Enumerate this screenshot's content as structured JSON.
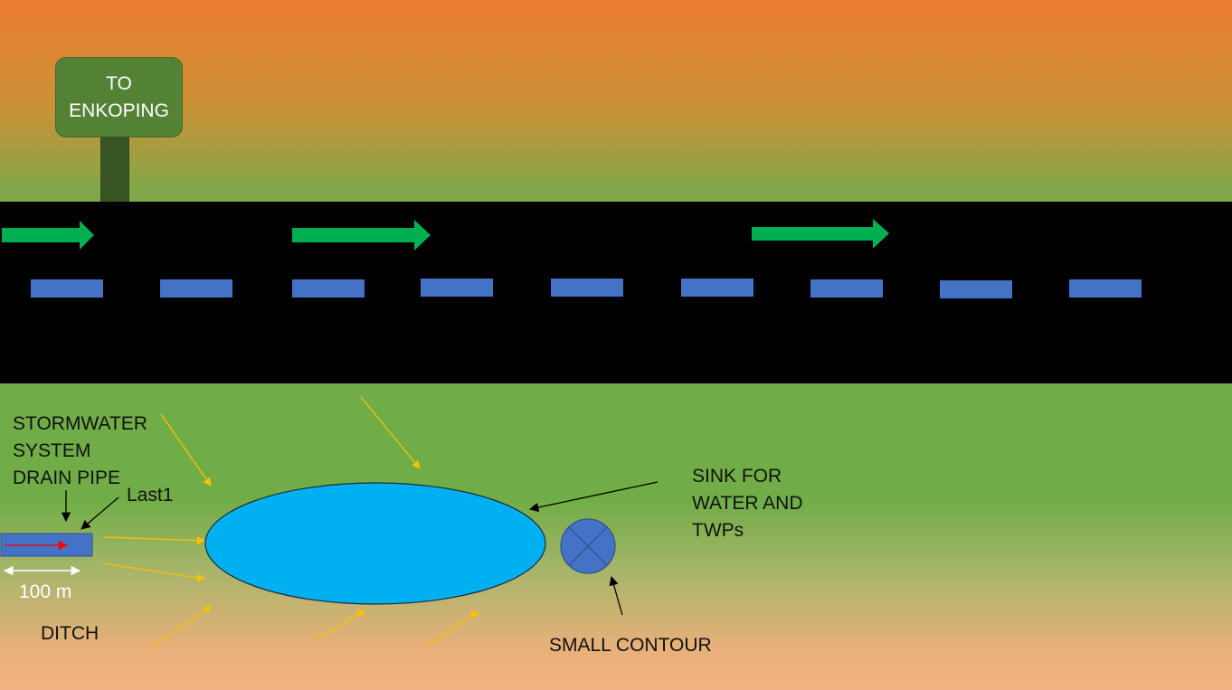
{
  "sign": {
    "line1": "TO",
    "line2": "ENKOPING",
    "board_color": "#548235",
    "post_color": "#375623"
  },
  "labels": {
    "stormwater": [
      "STORMWATER",
      "SYSTEM",
      "DRAIN PIPE"
    ],
    "last": "Last1",
    "distance": "100 m",
    "ditch": "DITCH",
    "sink": [
      "SINK FOR",
      "WATER AND",
      "TWPs"
    ],
    "contour": "SMALL CONTOUR"
  },
  "colors": {
    "sky_top": "#ed7d31",
    "grass": "#70ad47",
    "ground_bottom": "#f4b183",
    "road": "#000000",
    "lane_marker": "#4472c4",
    "direction_arrow": "#00b050",
    "pond": "#00b0f0",
    "flow_arrow": "#ffc000",
    "pipe_flow": "#ff0000",
    "contour_marker": "#4472c4"
  },
  "icons": [
    "direction-arrow-icon",
    "contour-marker-icon"
  ]
}
